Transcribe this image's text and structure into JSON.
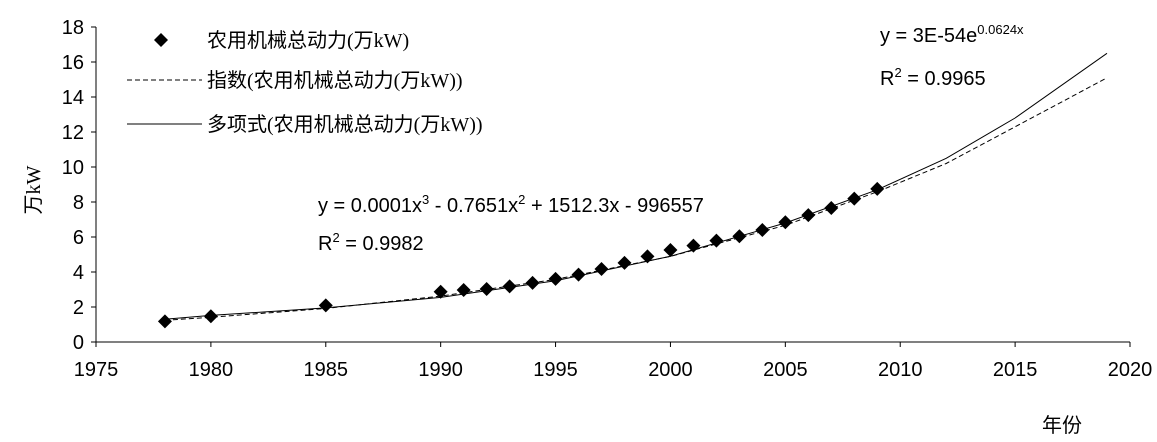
{
  "chart_data": {
    "type": "scatter",
    "title": "",
    "xlabel": "年份",
    "ylabel": "万kW",
    "xlim": [
      1975,
      2020
    ],
    "ylim": [
      0,
      18
    ],
    "x_ticks": [
      "1975",
      "1980",
      "1985",
      "1990",
      "1995",
      "2000",
      "2005",
      "2010",
      "2015",
      "2020"
    ],
    "y_ticks": [
      "0",
      "2",
      "4",
      "6",
      "8",
      "10",
      "12",
      "14",
      "16",
      "18"
    ],
    "grid": false,
    "legend_position": "top-left",
    "series": [
      {
        "name": "农用机械总动力(万kW)",
        "style": "diamond-markers",
        "x": [
          1978,
          1980,
          1985,
          1990,
          1991,
          1992,
          1993,
          1994,
          1995,
          1996,
          1997,
          1998,
          1999,
          2000,
          2001,
          2002,
          2003,
          2004,
          2005,
          2006,
          2007,
          2008,
          2009
        ],
        "y": [
          1.18,
          1.47,
          2.09,
          2.87,
          2.97,
          3.03,
          3.18,
          3.38,
          3.61,
          3.85,
          4.17,
          4.52,
          4.89,
          5.26,
          5.51,
          5.79,
          6.04,
          6.4,
          6.84,
          7.25,
          7.66,
          8.19,
          8.75
        ]
      },
      {
        "name": "指数(农用机械总动力(万kW))",
        "style": "dashed-line",
        "x": [
          1978,
          1980,
          1985,
          1990,
          1995,
          2000,
          2005,
          2009,
          2012,
          2015,
          2019
        ],
        "y": [
          1.24,
          1.41,
          1.92,
          2.62,
          3.58,
          4.89,
          6.67,
          8.58,
          10.2,
          12.3,
          15.1
        ]
      },
      {
        "name": "多项式(农用机械总动力(万kW))",
        "style": "solid-line",
        "x": [
          1978,
          1980,
          1985,
          1990,
          1995,
          2000,
          2005,
          2009,
          2012,
          2015,
          2019
        ],
        "y": [
          1.3,
          1.52,
          1.95,
          2.55,
          3.5,
          4.9,
          6.8,
          8.7,
          10.5,
          12.8,
          16.5
        ]
      }
    ],
    "annotations": [
      {
        "equation_prefix": "y = 3E-54e",
        "equation_sup": "0.0624x",
        "r2_prefix": "R",
        "r2_sup": "2",
        "r2_suffix": " = 0.9965"
      },
      {
        "equation_segments": [
          {
            "text": "y = 0.0001x"
          },
          {
            "sup": "3"
          },
          {
            "text": " - 0.7651x"
          },
          {
            "sup": "2"
          },
          {
            "text": " + 1512.3x - 996557"
          }
        ],
        "r2_prefix": "R",
        "r2_sup": "2",
        "r2_suffix": " = 0.9982"
      }
    ]
  }
}
